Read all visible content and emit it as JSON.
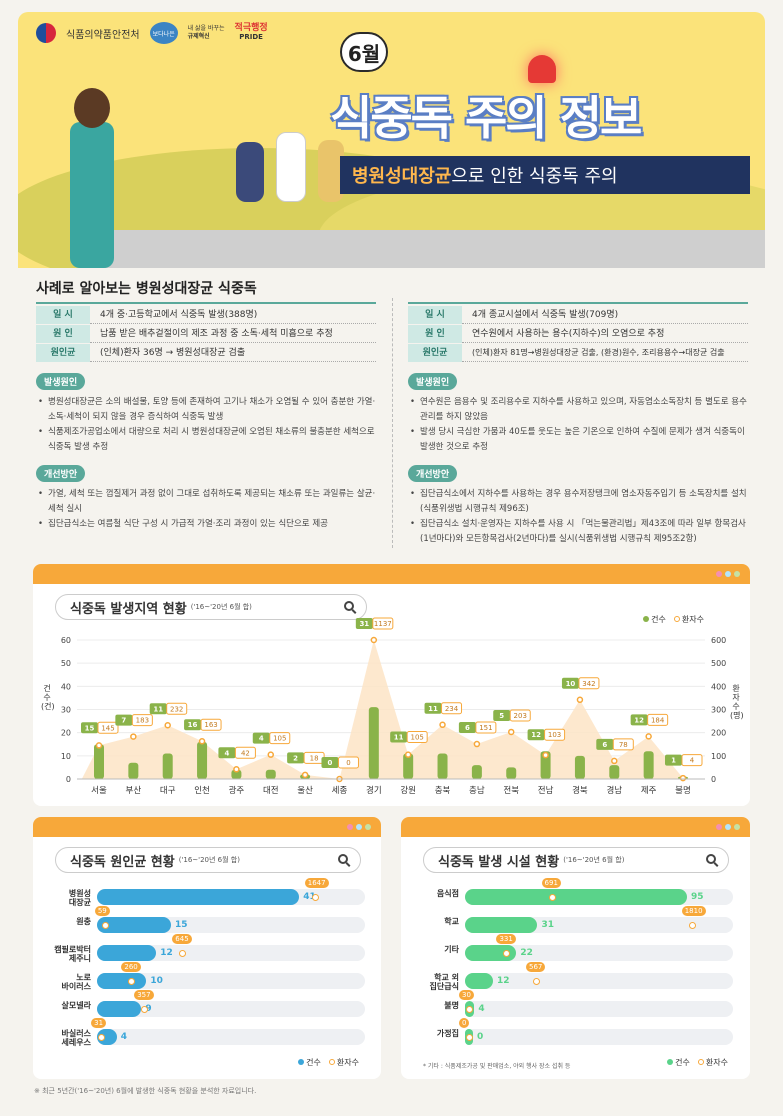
{
  "header": {
    "org": "식품의약품안전처",
    "badge1": "보다나은",
    "badge2_small": "내 삶을 바꾸는",
    "badge2": "규제혁신",
    "badge3": "적극행정",
    "badge3_sub": "PRIDE",
    "month": "6월",
    "title": "식중독 주의 정보",
    "subtitle_hl": "병원성대장균",
    "subtitle_rest": "으로 인한 식중독 주의"
  },
  "cases": {
    "section_title": "사례로 알아보는 병원성대장균 식중독",
    "left": {
      "rows": [
        {
          "k": "일 시",
          "v": "4개 중·고등학교에서 식중독 발생(388명)"
        },
        {
          "k": "원 인",
          "v": "납품 받은 배추겉절이의 제조 과정 중 소독·세척 미흡으로 추정"
        },
        {
          "k": "원인균",
          "v": "(인체)환자 36명 → 병원성대장균 검출"
        }
      ],
      "cause_label": "발생원인",
      "causes": [
        "병원성대장균은 소의 배설물, 토양 등에 존재하여 고기나 채소가 오염될 수 있어 충분한 가열·소독·세척이 되지 않을 경우 증식하여 식중독 발생",
        "식품제조가공업소에서 대량으로 처리 시 병원성대장균에 오염된 채소류의 불충분한 세척으로 식중독 발생 추정"
      ],
      "fix_label": "개선방안",
      "fixes": [
        "가열, 세척 또는 껍질제거 과정 없이 그대로 섭취하도록 제공되는 채소류 또는 과일류는 살균·세척 실시",
        "집단급식소는 여름철 식단 구성 시 가급적 가열·조리 과정이 있는 식단으로 제공"
      ]
    },
    "right": {
      "rows": [
        {
          "k": "일 시",
          "v": "4개 종교시설에서 식중독 발생(709명)"
        },
        {
          "k": "원 인",
          "v": "연수원에서 사용하는 용수(지하수)의 오염으로 추정"
        },
        {
          "k": "원인균",
          "v": "(인체)환자 81명→병원성대장균 검출, (환경)원수, 조리용용수→대장균 검출"
        }
      ],
      "cause_label": "발생원인",
      "causes": [
        "연수원은 음용수 및 조리용수로 지하수를 사용하고 있으며, 자동염소소독장치 등 별도로 용수관리를 하지 않았음",
        "발생 당시 극심한 가뭄과 40도를 웃도는 높은 기온으로 인하여 수질에 문제가 생겨 식중독이 발생한 것으로 추정"
      ],
      "fix_label": "개선방안",
      "fixes": [
        "집단급식소에서 지하수를 사용하는 경우 용수저장탱크에 염소자동주입기 등 소독장치를 설치(식품위생법 시행규칙 제96조)",
        "집단급식소 설치·운영자는 지하수를 사용 시 「먹는물관리법」제43조에 따라 일부 항목검사(1년마다)와 모든항목검사(2년마다)를 실시(식품위생법 시행규칙 제95조2항)"
      ]
    }
  },
  "region_chart": {
    "title": "식중독 발생지역 현황",
    "period": "('16~'20년 6월 합)",
    "legend_cases": "건수",
    "legend_patients": "환자수",
    "ylabel_left": "건수(건)",
    "ylabel_right": "환자수(명)"
  },
  "pathogen_chart": {
    "title": "식중독 원인균 현황",
    "period": "('16~'20년 6월 합)",
    "legend_cases": "건수",
    "legend_patients": "환자수"
  },
  "facility_chart": {
    "title": "식중독 발생 시설 현황",
    "period": "('16~'20년 6월 합)",
    "legend_cases": "건수",
    "legend_patients": "환자수",
    "note": "* 기타 : 식품제조가공 및 판매업소, 야외 행사 장소 섭취 등"
  },
  "footnote": "※ 최근 5년간('16~'20년) 6월에 발생한 식중독 현황을 분석한 자료입니다.",
  "colors": {
    "orange": "#f7a83a",
    "green": "#8ab34a",
    "blue": "#3ba6d9",
    "mint": "#5ad38a",
    "teal": "#5aa89a",
    "navy": "#20335f"
  },
  "chart_data": [
    {
      "type": "line",
      "title": "식중독 발생지역 현황",
      "categories": [
        "서울",
        "부산",
        "대구",
        "인천",
        "광주",
        "대전",
        "울산",
        "세종",
        "경기",
        "강원",
        "충북",
        "충남",
        "전북",
        "전남",
        "경북",
        "경남",
        "제주",
        "불명"
      ],
      "series": [
        {
          "name": "건수",
          "values": [
            15,
            7,
            11,
            16,
            4,
            4,
            2,
            0,
            31,
            11,
            11,
            6,
            5,
            12,
            10,
            6,
            12,
            1
          ]
        },
        {
          "name": "환자수",
          "values": [
            145,
            183,
            232,
            163,
            42,
            105,
            18,
            0,
            1137,
            105,
            234,
            151,
            203,
            103,
            342,
            78,
            184,
            4
          ]
        }
      ],
      "ylim": [
        0,
        60
      ],
      "ylim_right": [
        0,
        600
      ],
      "yticks": [
        0,
        10,
        20,
        30,
        40,
        50,
        60
      ],
      "yticks_right": [
        0,
        100,
        200,
        300,
        400,
        500,
        600
      ]
    },
    {
      "type": "bar",
      "title": "식중독 원인균 현황",
      "categories": [
        "병원성\n대장균",
        "원충",
        "캠필로박터\n제주니",
        "노로\n바이러스",
        "살모넬라",
        "바실러스\n세레우스"
      ],
      "series": [
        {
          "name": "건수",
          "values": [
            41,
            15,
            12,
            10,
            9,
            4
          ]
        },
        {
          "name": "환자수",
          "values": [
            1647,
            59,
            645,
            260,
            357,
            31
          ]
        }
      ]
    },
    {
      "type": "bar",
      "title": "식중독 발생 시설 현황",
      "categories": [
        "음식점",
        "학교",
        "기타",
        "학교 외\n집단급식",
        "불명",
        "가정집"
      ],
      "series": [
        {
          "name": "건수",
          "values": [
            95,
            31,
            22,
            12,
            4,
            0
          ]
        },
        {
          "name": "환자수",
          "values": [
            691,
            1810,
            331,
            567,
            30,
            0
          ]
        }
      ]
    }
  ]
}
